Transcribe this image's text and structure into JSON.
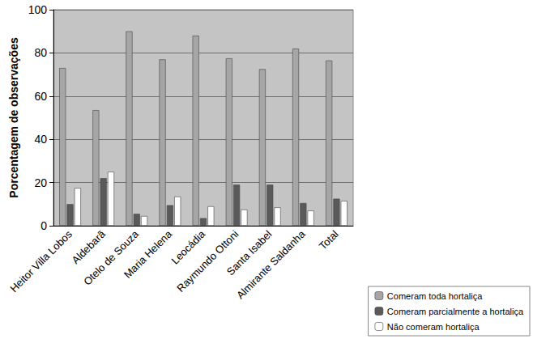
{
  "chart_data": {
    "type": "bar",
    "y_label": "Porcentagem de observações",
    "categories": [
      "Heitor Villa Lobos",
      "Aldebarã",
      "Otelo de Souza",
      "Maria Helena",
      "Leocádia",
      "Raymundo Ottoni",
      "Santa Isabel",
      "Almirante Saldanha",
      "Total"
    ],
    "series": [
      {
        "name": "Comeram toda hortaliça",
        "color": "#a6a6a6",
        "values": [
          73,
          53.5,
          90,
          77,
          88,
          77.5,
          72.5,
          82,
          76.5
        ]
      },
      {
        "name": "Comeram parcialmente a hortaliça",
        "color": "#5a5a5a",
        "values": [
          10,
          22,
          5.5,
          9.5,
          3.5,
          19,
          19,
          10.5,
          12.5
        ]
      },
      {
        "name": "Não comeram hortaliça",
        "color": "#ffffff",
        "values": [
          17.5,
          25,
          4.5,
          13.5,
          9,
          7.5,
          8.5,
          7,
          11.5
        ]
      }
    ],
    "ylim": [
      0,
      100
    ],
    "yticks": [
      0,
      20,
      40,
      60,
      80,
      100
    ],
    "grid": true,
    "legend": "bottom right"
  }
}
